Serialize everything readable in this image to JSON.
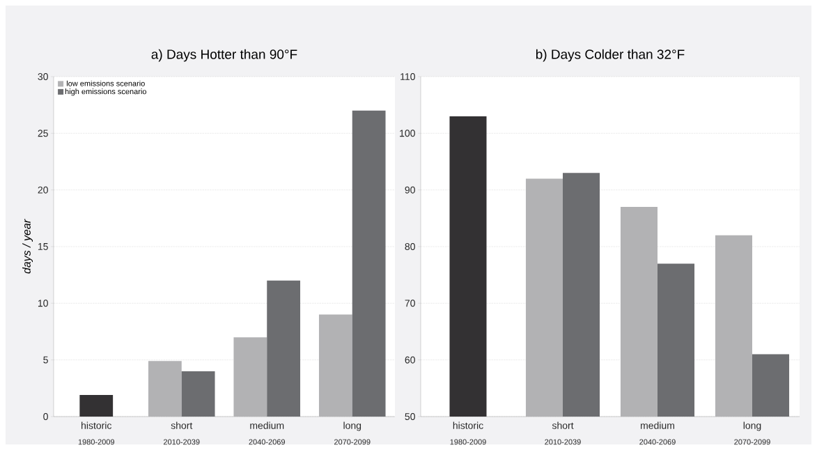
{
  "chart_data": [
    {
      "type": "bar",
      "title": "a) Days Hotter than 90°F",
      "ylabel": "days / year",
      "categories": [
        "historic",
        "short",
        "medium",
        "long"
      ],
      "annotations": [
        "1980-2009",
        "2010-2039",
        "2040-2069",
        "2070-2099"
      ],
      "series": [
        {
          "color": "#333133",
          "values": [
            1.9,
            null,
            null,
            null
          ]
        },
        {
          "name": "low emissions scenario",
          "color": "#b2b2b4",
          "values": [
            null,
            4.9,
            7,
            9
          ]
        },
        {
          "name": "high emissions scenario",
          "color": "#6c6d70",
          "values": [
            null,
            4,
            12,
            27
          ]
        }
      ],
      "ylim": [
        0,
        30
      ],
      "yticks": [
        0,
        5,
        10,
        15,
        20,
        25,
        30
      ],
      "grid": "y",
      "legend": "top left"
    },
    {
      "type": "bar",
      "title": "b) Days Colder than 32°F",
      "categories": [
        "historic",
        "short",
        "medium",
        "long"
      ],
      "annotations": [
        "1980-2009",
        "2010-2039",
        "2040-2069",
        "2070-2099"
      ],
      "series": [
        {
          "color": "#333133",
          "values": [
            103,
            null,
            null,
            null
          ]
        },
        {
          "color": "#b2b2b4",
          "values": [
            null,
            92,
            87,
            82
          ]
        },
        {
          "color": "#6c6d70",
          "values": [
            null,
            93,
            77,
            61
          ]
        }
      ],
      "ylim": [
        50,
        110
      ],
      "yticks": [
        50,
        60,
        70,
        80,
        90,
        100,
        110
      ],
      "grid": "y",
      "legend": false
    }
  ]
}
